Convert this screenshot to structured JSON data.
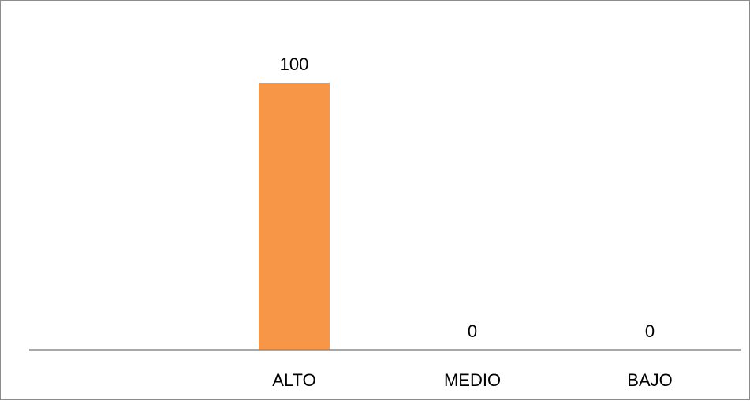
{
  "chart_data": {
    "type": "bar",
    "categories": [
      "ALTO",
      "MEDIO",
      "BAJO"
    ],
    "values": [
      100,
      0,
      0
    ],
    "data_labels": [
      "100",
      "0",
      "0"
    ],
    "title": "",
    "xlabel": "",
    "ylabel": "",
    "ylim": [
      0,
      100
    ],
    "grid": false,
    "legend": "none",
    "bar_color": "#F79646",
    "axis_color": "#8c8c8c"
  }
}
